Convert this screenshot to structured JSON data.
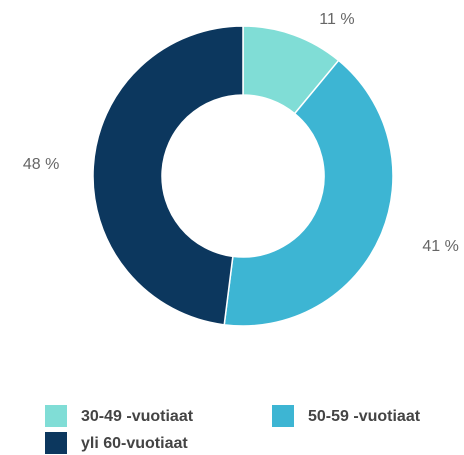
{
  "chart_data": {
    "type": "donut",
    "categories": [
      "30-49 -vuotiaat",
      "50-59 -vuotiaat",
      "yli 60-vuotiaat"
    ],
    "values": [
      11,
      41,
      48
    ],
    "value_labels": [
      "11 %",
      "41 %",
      "48 %"
    ],
    "colors": [
      "#80ddd6",
      "#3db5d3",
      "#0c375e"
    ],
    "legend": "bottom"
  }
}
